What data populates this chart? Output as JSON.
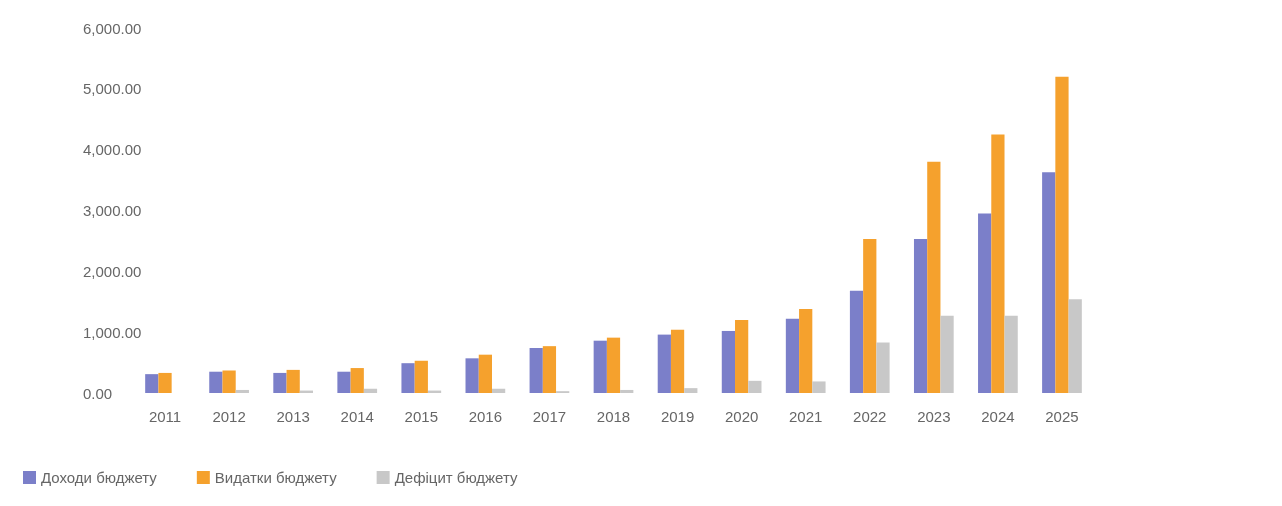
{
  "chart_data": {
    "type": "bar",
    "categories": [
      "2011",
      "2012",
      "2013",
      "2014",
      "2015",
      "2016",
      "2017",
      "2018",
      "2019",
      "2020",
      "2021",
      "2022",
      "2023",
      "2024",
      "2025"
    ],
    "series": [
      {
        "name": "Доходи бюджету",
        "color": "#7b7fc9",
        "values": [
          310,
          350,
          330,
          350,
          490,
          570,
          740,
          860,
          960,
          1020,
          1220,
          1680,
          2530,
          2950,
          3630
        ]
      },
      {
        "name": "Видатки бюджету",
        "color": "#f5a12d",
        "values": [
          330,
          370,
          380,
          410,
          530,
          630,
          770,
          910,
          1040,
          1200,
          1380,
          2530,
          3800,
          4250,
          5200
        ]
      },
      {
        "name": "Дефіцит бюджету",
        "color": "#c8c8c8",
        "values": [
          null,
          50,
          40,
          70,
          40,
          70,
          30,
          50,
          80,
          200,
          190,
          830,
          1270,
          1270,
          1540
        ]
      }
    ],
    "ylim": [
      0,
      6000
    ],
    "yticks": [
      {
        "value": 0,
        "label": "0.00"
      },
      {
        "value": 1000,
        "label": "1,000.00"
      },
      {
        "value": 2000,
        "label": "2,000.00"
      },
      {
        "value": 3000,
        "label": "3,000.00"
      },
      {
        "value": 4000,
        "label": "4,000.00"
      },
      {
        "value": 5000,
        "label": "5,000.00"
      },
      {
        "value": 6000,
        "label": "6,000.00"
      }
    ],
    "grid": false,
    "legend": "bottom left"
  }
}
